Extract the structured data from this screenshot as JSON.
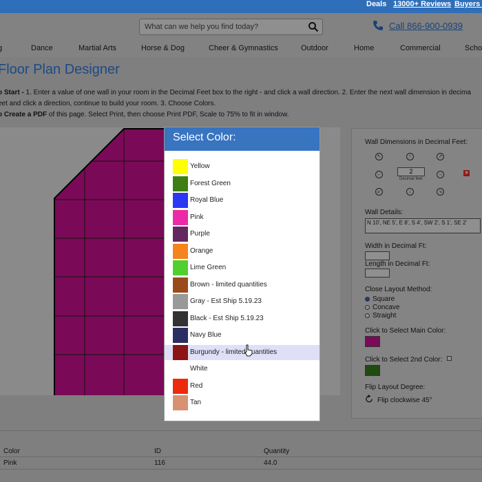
{
  "topbar": {
    "deals": "Deals",
    "reviews": "13000+ Reviews",
    "buyers": "Buyers G"
  },
  "header": {
    "search_placeholder": "What can we help you find today?",
    "phone": "Call 866-900-0939",
    "nav": [
      "g",
      "Dance",
      "Martial Arts",
      "Horse & Dog",
      "Cheer & Gymnastics",
      "Outdoor",
      "Home",
      "Commercial",
      "Scho"
    ]
  },
  "page": {
    "title": "Floor Plan Designer",
    "instr_line1_bold": "o Start -",
    "instr_line1": " 1. Enter a value of one wall in your room in the Decimal Feet box to the right - and click a wall direction. 2. Enter the next wall dimension in decima",
    "instr_line2": "eet and click a direction, continue to build your room. 3. Choose Colors.",
    "instr_line3_bold": "o Create a PDF",
    "instr_line3": " of this page. Select Print, then choose Print PDF, Scale to 75% to fit in window."
  },
  "panel": {
    "wall_dims_label": "Wall Dimensions in Decimal Feet:",
    "decimal_value": "2",
    "decimal_label": "Decimal feet",
    "delete_label": "✕",
    "wall_details_label": "Wall Details:",
    "wall_details_value": "N 10', NE 5', E 8', S 4', SW 2', S 1', SE 2'",
    "width_label": "Width in Decimal Ft:",
    "length_label": "Length in Decimal Ft:",
    "close_method_label": "Close Layout Method:",
    "methods": [
      "Square",
      "Concave",
      "Straight"
    ],
    "main_color_label": "Click to Select Main Color:",
    "second_color_label": "Click to Select 2nd Color:",
    "flip_label": "Flip Layout Degree:",
    "flip_button": "Flip clockwise 45°",
    "main_color": "#7a0a57",
    "second_color": "#1f4a10"
  },
  "table": {
    "headers": [
      "Color",
      "ID",
      "Quantity"
    ],
    "rows": [
      [
        "Pink",
        "116",
        "44.0"
      ]
    ]
  },
  "dialog": {
    "title": "Select Color:",
    "hover_index": 11,
    "options": [
      {
        "name": "Yellow",
        "color": "#ffff00"
      },
      {
        "name": "Forest Green",
        "color": "#3d7f12"
      },
      {
        "name": "Royal Blue",
        "color": "#2a38f4"
      },
      {
        "name": "Pink",
        "color": "#ec2aa7"
      },
      {
        "name": "Purple",
        "color": "#62285f"
      },
      {
        "name": "Orange",
        "color": "#f5841c"
      },
      {
        "name": "Lime Green",
        "color": "#4fd02e"
      },
      {
        "name": "Brown - limited quantities",
        "color": "#9a4b1b"
      },
      {
        "name": "Gray - Est Ship 5.19.23",
        "color": "#999999"
      },
      {
        "name": "Black - Est Ship 5.19.23",
        "color": "#333333"
      },
      {
        "name": "Navy Blue",
        "color": "#2c2d63"
      },
      {
        "name": "Burgundy - limited quantities",
        "color": "#8b1414"
      },
      {
        "name": "White",
        "color": "#ffffff"
      },
      {
        "name": "Red",
        "color": "#ee2a0c"
      },
      {
        "name": "Tan",
        "color": "#d79273"
      }
    ]
  },
  "room_color": "#7a0a57"
}
